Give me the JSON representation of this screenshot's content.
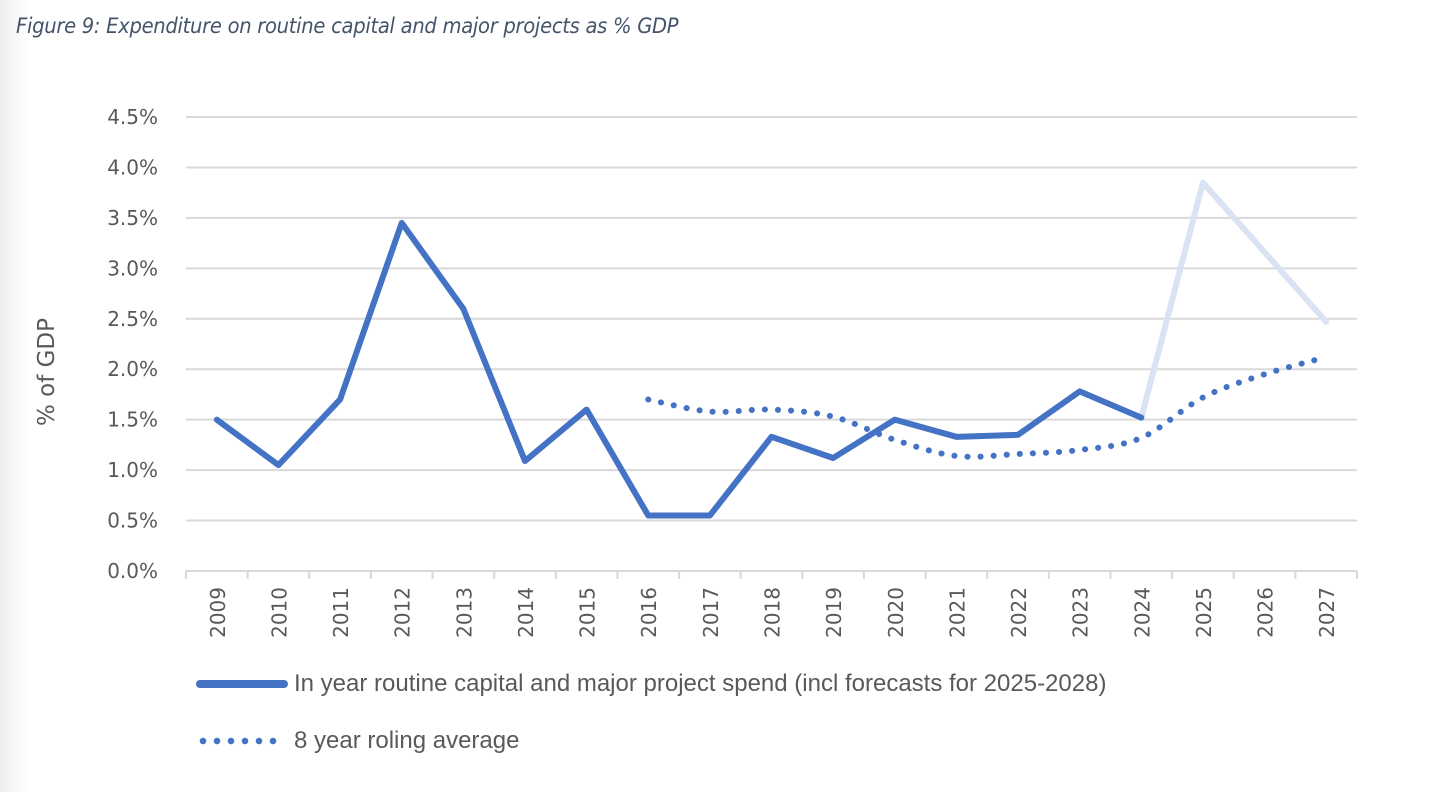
{
  "figure": {
    "title": "Figure 9: Expenditure on routine capital and major projects as % GDP"
  },
  "chart_data": {
    "type": "line",
    "title": "Figure 9: Expenditure on routine capital and major projects as % GDP",
    "xlabel": "",
    "ylabel": "% of GDP",
    "ylim": [
      0,
      4.5
    ],
    "yticks": [
      "0.0%",
      "0.5%",
      "1.0%",
      "1.5%",
      "2.0%",
      "2.5%",
      "3.0%",
      "3.5%",
      "4.0%",
      "4.5%"
    ],
    "ytick_values": [
      0,
      0.5,
      1.0,
      1.5,
      2.0,
      2.5,
      3.0,
      3.5,
      4.0,
      4.5
    ],
    "grid": true,
    "categories": [
      "2009",
      "2010",
      "2011",
      "2012",
      "2013",
      "2014",
      "2015",
      "2016",
      "2017",
      "2018",
      "2019",
      "2020",
      "2021",
      "2022",
      "2023",
      "2024",
      "2025",
      "2026",
      "2027"
    ],
    "series": [
      {
        "name": "In year routine capital and major project spend (incl forecasts for 2025-2028)",
        "style": "solid",
        "color": "#4472c4",
        "forecast_color": "#dae3f3",
        "forecast_from": "2024",
        "values": [
          1.5,
          1.05,
          1.7,
          3.45,
          2.6,
          1.09,
          1.6,
          0.55,
          0.55,
          1.33,
          1.12,
          1.5,
          1.33,
          1.35,
          1.78,
          1.52,
          3.85,
          3.16,
          2.47
        ]
      },
      {
        "name": "8 year roling average",
        "style": "dotted",
        "color": "#4472c4",
        "values": [
          null,
          null,
          null,
          null,
          null,
          null,
          null,
          1.7,
          1.58,
          1.6,
          1.53,
          1.3,
          1.14,
          1.16,
          1.2,
          1.32,
          1.72,
          1.95,
          2.12
        ]
      }
    ],
    "legend_position": "bottom-left"
  },
  "legend": {
    "items": [
      {
        "label": "In year routine capital and major project spend (incl forecasts for 2025-2028)"
      },
      {
        "label": "8 year roling average"
      }
    ]
  }
}
